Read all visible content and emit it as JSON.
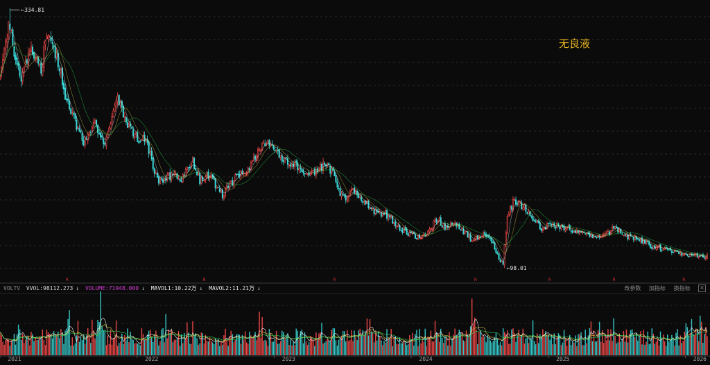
{
  "stock_name": "无良液",
  "indicator_bar": {
    "name": "VOLTV",
    "vvol_label": "VVOL:98112.273",
    "volume_label": "VOLUME:71948.000",
    "mavol1_label": "MAVOL1:10.22万",
    "mavol2_label": "MAVOL2:11.21万",
    "down_arrow": "↓",
    "buttons": [
      "改参数",
      "加指标",
      "换指标"
    ],
    "close_icon": "close-icon",
    "close_glyph": "×"
  },
  "colors": {
    "background": "#0b0b0b",
    "up": "#ff4b4b",
    "down": "#3ad6d6",
    "ma1": "#ffffff",
    "ma2": "#e8d84a",
    "ma3": "#2ee65a",
    "label": "#e6b31f"
  },
  "chart_data": [
    {
      "type": "candlestick",
      "high_label": "334.81",
      "low_label": "98.01",
      "y_range": [
        88,
        340
      ],
      "event_marker": "R",
      "event_marker_years": [
        2021.49,
        2022.49,
        2023.44,
        2024.47,
        2025.01,
        2025.48,
        2025.99
      ],
      "x_labels": [
        "2021",
        "2022",
        "2023",
        "2024",
        "2025",
        "2026"
      ],
      "x_range": [
        2021.0,
        2026.16
      ],
      "anchors": [
        [
          2021.0,
          270
        ],
        [
          2021.04,
          300
        ],
        [
          2021.07,
          325
        ],
        [
          2021.11,
          285
        ],
        [
          2021.16,
          268
        ],
        [
          2021.22,
          300
        ],
        [
          2021.3,
          278
        ],
        [
          2021.34,
          315
        ],
        [
          2021.42,
          288
        ],
        [
          2021.49,
          248
        ],
        [
          2021.55,
          232
        ],
        [
          2021.61,
          210
        ],
        [
          2021.69,
          232
        ],
        [
          2021.77,
          212
        ],
        [
          2021.86,
          255
        ],
        [
          2021.92,
          230
        ],
        [
          2022.0,
          218
        ],
        [
          2022.07,
          212
        ],
        [
          2022.14,
          180
        ],
        [
          2022.19,
          178
        ],
        [
          2022.25,
          183
        ],
        [
          2022.32,
          176
        ],
        [
          2022.4,
          198
        ],
        [
          2022.46,
          178
        ],
        [
          2022.53,
          183
        ],
        [
          2022.62,
          165
        ],
        [
          2022.72,
          180
        ],
        [
          2022.79,
          185
        ],
        [
          2022.89,
          205
        ],
        [
          2022.96,
          215
        ],
        [
          2023.0,
          205
        ],
        [
          2023.06,
          198
        ],
        [
          2023.12,
          192
        ],
        [
          2023.18,
          190
        ],
        [
          2023.23,
          185
        ],
        [
          2023.3,
          186
        ],
        [
          2023.37,
          193
        ],
        [
          2023.44,
          183
        ],
        [
          2023.48,
          165
        ],
        [
          2023.52,
          163
        ],
        [
          2023.58,
          168
        ],
        [
          2023.66,
          158
        ],
        [
          2023.73,
          150
        ],
        [
          2023.82,
          147
        ],
        [
          2023.93,
          133
        ],
        [
          2024.0,
          128
        ],
        [
          2024.07,
          125
        ],
        [
          2024.14,
          135
        ],
        [
          2024.2,
          143
        ],
        [
          2024.25,
          133
        ],
        [
          2024.32,
          140
        ],
        [
          2024.38,
          132
        ],
        [
          2024.45,
          123
        ],
        [
          2024.52,
          130
        ],
        [
          2024.6,
          120
        ],
        [
          2024.64,
          105
        ],
        [
          2024.67,
          102
        ],
        [
          2024.7,
          145
        ],
        [
          2024.75,
          160
        ],
        [
          2024.81,
          155
        ],
        [
          2024.89,
          143
        ],
        [
          2024.95,
          134
        ],
        [
          2025.03,
          137
        ],
        [
          2025.15,
          135
        ],
        [
          2025.25,
          128
        ],
        [
          2025.32,
          127
        ],
        [
          2025.4,
          126
        ],
        [
          2025.48,
          134
        ],
        [
          2025.55,
          128
        ],
        [
          2025.61,
          126
        ],
        [
          2025.69,
          123
        ],
        [
          2025.77,
          116
        ],
        [
          2025.85,
          117
        ],
        [
          2025.93,
          112
        ],
        [
          2026.02,
          110
        ],
        [
          2026.08,
          110
        ],
        [
          2026.16,
          108
        ]
      ]
    },
    {
      "type": "bar",
      "name": "VOLUME",
      "y_range": [
        0,
        20
      ],
      "vol_peaks": [
        [
          2021.73,
          18
        ],
        [
          2024.45,
          18
        ],
        [
          2026.01,
          15
        ]
      ]
    }
  ]
}
